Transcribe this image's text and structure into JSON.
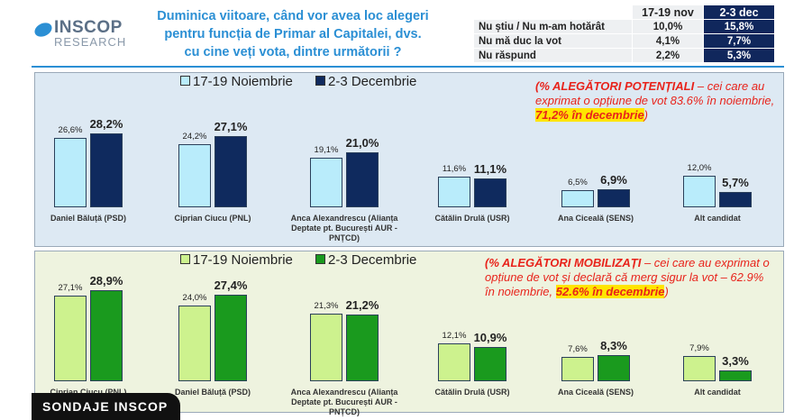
{
  "header": {
    "logo": [
      "INSCOP",
      "RESEARCH"
    ],
    "title": [
      "Duminica viitoare, când vor avea loc alegeri",
      "pentru funcția de Primar al Capitalei, dvs.",
      "cu cine veți vota, dintre următorii ?"
    ],
    "table": {
      "columns": [
        "17-19 nov",
        "2-3 dec"
      ],
      "rows": [
        [
          "Nu știu / Nu m-am hotărât",
          "10,0%",
          "15,8%"
        ],
        [
          "Nu mă duc la vot",
          "4,1%",
          "7,7%"
        ],
        [
          "Nu răspund",
          "2,2%",
          "5,3%"
        ]
      ]
    }
  },
  "badge": "SONDAJE INSCOP",
  "chart_data": [
    {
      "type": "bar",
      "annotation": [
        "(% ALEGĂTORI POTENȚIALI",
        " – cei care au exprimat o opțiune de vot 83.6% în noiembrie, ",
        "71,2% în decembrie",
        ")"
      ],
      "categories": [
        "Daniel Băluță (PSD)",
        "Ciprian Ciucu (PNL)",
        "Anca Alexandrescu (Alianța Deptate pt. București AUR - PNȚCD)",
        "Cătălin Drulă (USR)",
        "Ana Ciceală (SENS)",
        "Alt candidat"
      ],
      "series": [
        {
          "name": "17-19 Noiembrie",
          "color": "#b9ecfb",
          "values": [
            26.6,
            24.2,
            19.1,
            11.6,
            6.5,
            12.0
          ],
          "value_labels": [
            "26,6%",
            "24,2%",
            "19,1%",
            "11,6%",
            "6,5%",
            "12,0%"
          ]
        },
        {
          "name": "2-3 Decembrie",
          "color": "#0f2a5e",
          "values": [
            28.2,
            27.1,
            21.0,
            11.1,
            6.9,
            5.7
          ],
          "value_labels": [
            "28,2%",
            "27,1%",
            "21,0%",
            "11,1%",
            "6,9%",
            "5,7%"
          ]
        }
      ]
    },
    {
      "type": "bar",
      "annotation": [
        "(% ALEGĂTORI MOBILIZAȚI",
        " – cei care au exprimat o opțiune de vot și declară că merg sigur la vot – 62.9% în noiembrie, ",
        "52.6% în decembrie",
        ")"
      ],
      "categories": [
        "Ciprian Ciucu (PNL)",
        "Daniel Băluță (PSD)",
        "Anca Alexandrescu (Alianța Deptate pt. București AUR - PNȚCD)",
        "Cătălin Drulă (USR)",
        "Ana Ciceală (SENS)",
        "Alt candidat"
      ],
      "series": [
        {
          "name": "17-19 Noiembrie",
          "color": "#cdf28e",
          "values": [
            27.1,
            24.0,
            21.3,
            12.1,
            7.6,
            7.9
          ],
          "value_labels": [
            "27,1%",
            "24,0%",
            "21,3%",
            "12,1%",
            "7,6%",
            "7,9%"
          ]
        },
        {
          "name": "2-3 Decembrie",
          "color": "#1a9a1e",
          "values": [
            28.9,
            27.4,
            21.2,
            10.9,
            8.3,
            3.3
          ],
          "value_labels": [
            "28,9%",
            "27,4%",
            "21,2%",
            "10,9%",
            "8,3%",
            "3,3%"
          ]
        }
      ]
    }
  ]
}
